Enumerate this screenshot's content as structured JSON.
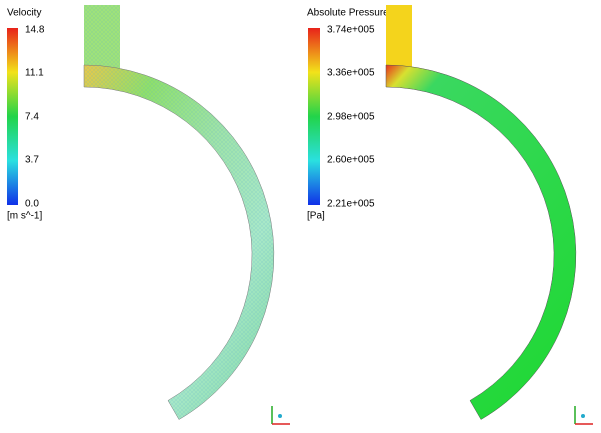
{
  "panels": [
    {
      "legend": {
        "title": "Velocity",
        "ticks": [
          "14.8",
          "11.1",
          "7.4",
          "3.7",
          "0.0"
        ],
        "unit": "[m s^-1]"
      }
    },
    {
      "legend": {
        "title": "Absolute Pressure",
        "ticks": [
          "3.74e+005",
          "3.36e+005",
          "2.98e+005",
          "2.60e+005",
          "2.21e+005"
        ],
        "unit": "[Pa]"
      }
    }
  ]
}
